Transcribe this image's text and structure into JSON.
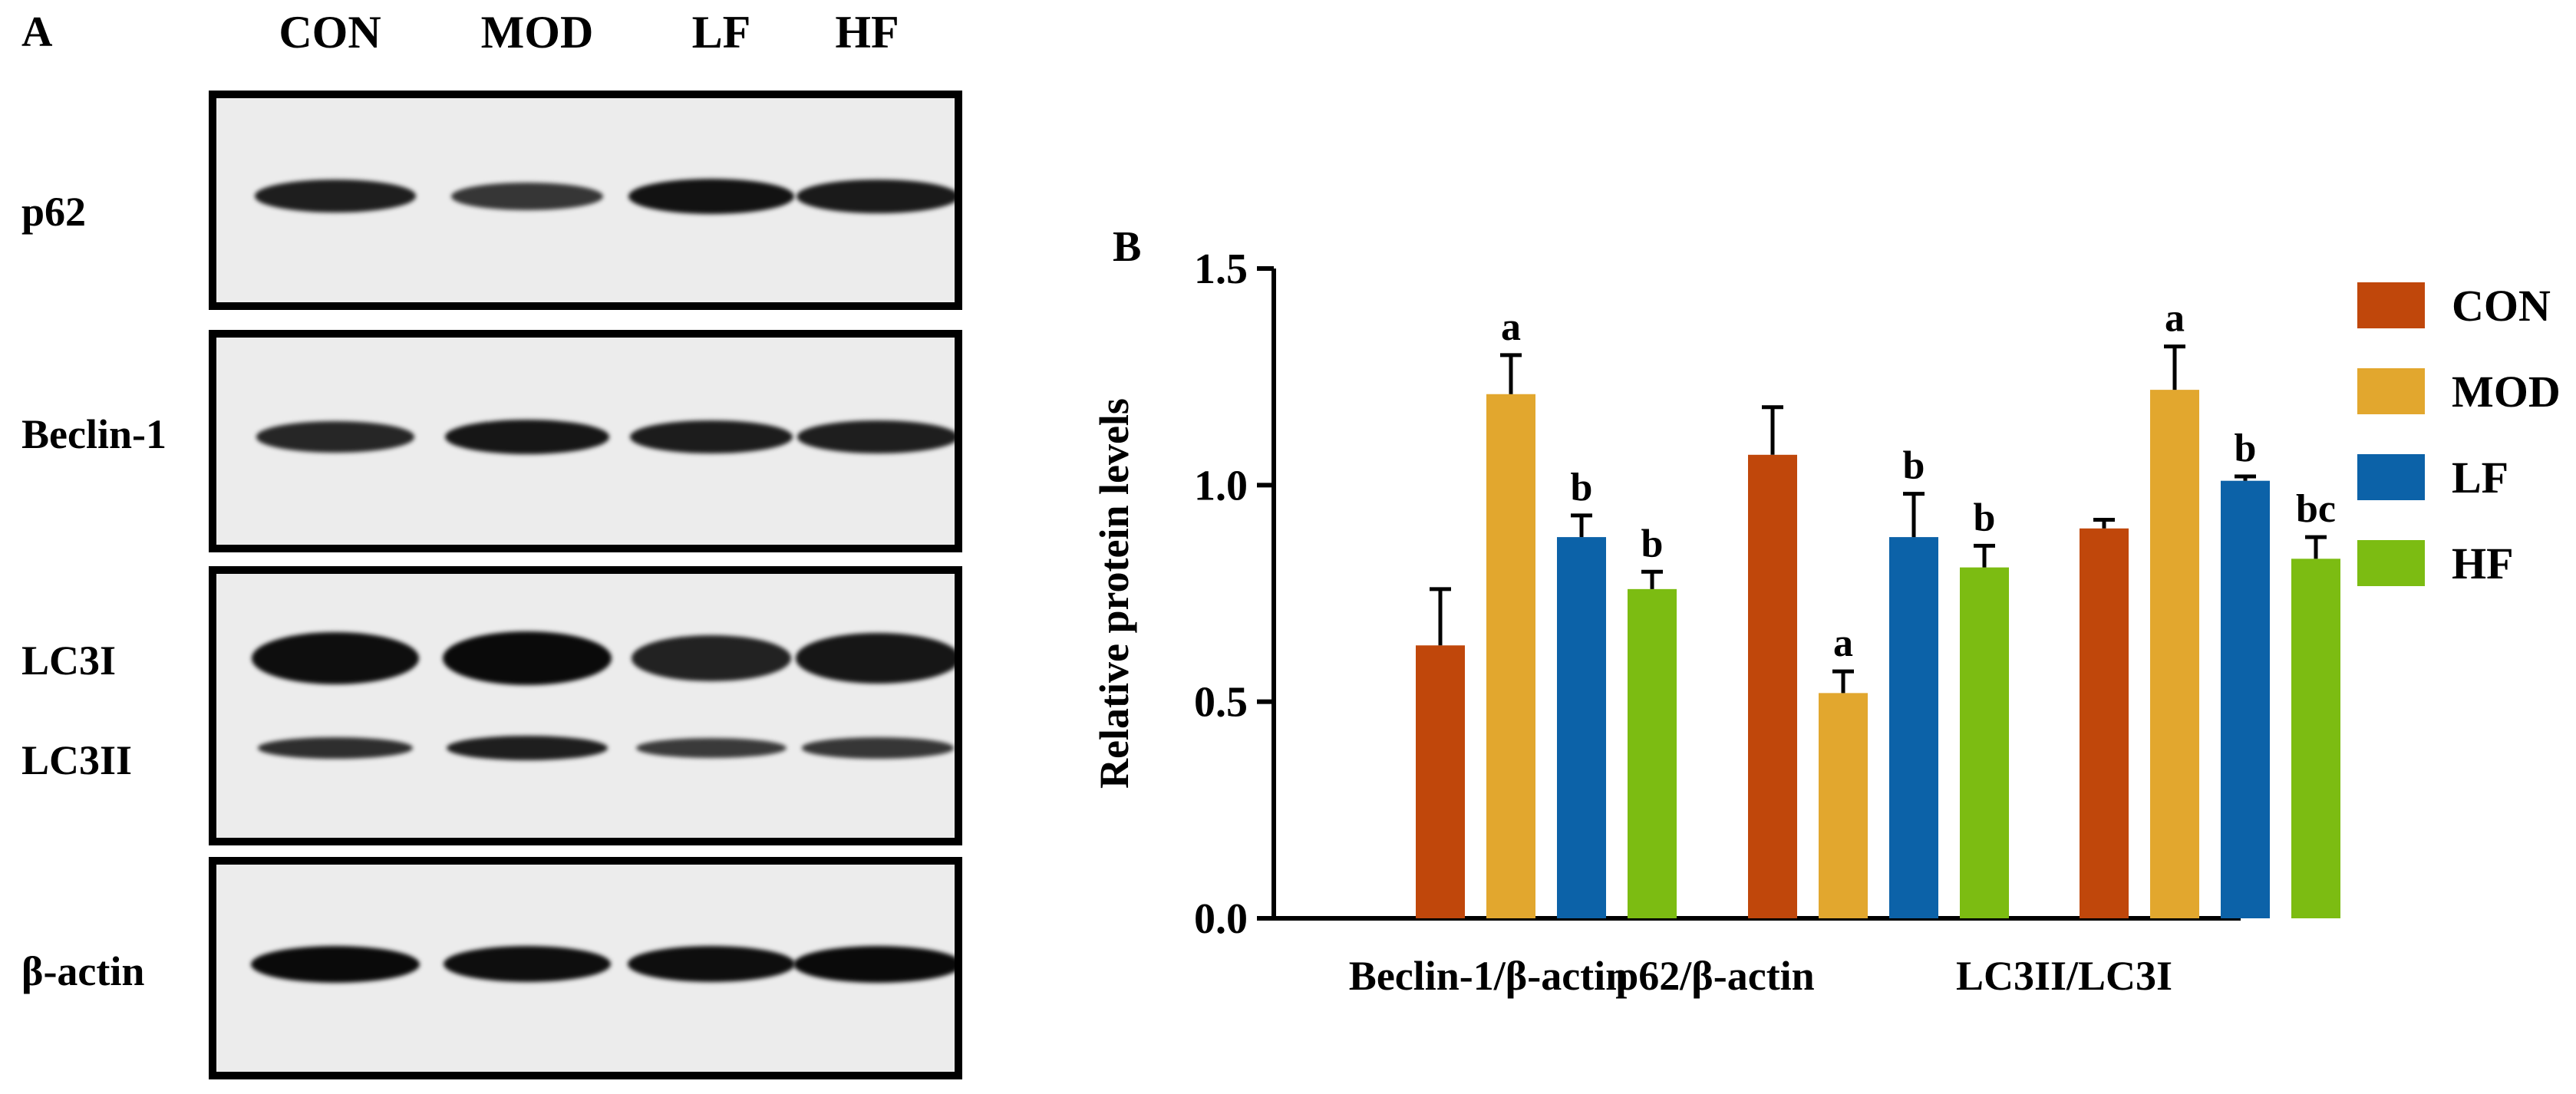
{
  "panel_a": {
    "letter": "A",
    "lanes": [
      "CON",
      "MOD",
      "LF",
      "HF"
    ],
    "blots": [
      {
        "labels": [
          "p62"
        ],
        "bands": [
          [
            0.75,
            0.45,
            0.9,
            0.8
          ]
        ]
      },
      {
        "labels": [
          "Beclin-1"
        ],
        "bands": [
          [
            0.65,
            0.85,
            0.78,
            0.75
          ]
        ]
      },
      {
        "labels": [
          "LC3I",
          "LC3II"
        ],
        "bands": [
          [
            0.95,
            1.0,
            0.7,
            0.85
          ],
          [
            0.55,
            0.75,
            0.4,
            0.45
          ]
        ]
      },
      {
        "labels": [
          "β-actin"
        ],
        "bands": [
          [
            1.0,
            0.95,
            0.95,
            1.0
          ]
        ]
      }
    ]
  },
  "panel_b": {
    "letter": "B"
  },
  "chart_data": {
    "type": "bar",
    "ylabel": "Relative protein levels",
    "ylim": [
      0,
      1.5
    ],
    "yticks": [
      "0.0",
      "0.5",
      "1.0",
      "1.5"
    ],
    "categories": [
      "Beclin-1/β-actin",
      "p62/β-actin",
      "LC3II/LC3I"
    ],
    "legend_position": "right",
    "series": [
      {
        "name": "CON",
        "color": "#c0470b",
        "values": [
          0.63,
          1.07,
          0.9
        ],
        "errors": [
          0.13,
          0.11,
          0.02
        ],
        "labels": [
          "",
          "",
          ""
        ]
      },
      {
        "name": "MOD",
        "color": "#e2a72e",
        "values": [
          1.21,
          0.52,
          1.22
        ],
        "errors": [
          0.09,
          0.05,
          0.1
        ],
        "labels": [
          "a",
          "a",
          "a"
        ]
      },
      {
        "name": "LF",
        "color": "#0c62a8",
        "values": [
          0.88,
          0.88,
          1.01
        ],
        "errors": [
          0.05,
          0.1,
          0.01
        ],
        "labels": [
          "b",
          "b",
          "b"
        ]
      },
      {
        "name": "HF",
        "color": "#7cbc12",
        "values": [
          0.76,
          0.81,
          0.83
        ],
        "errors": [
          0.04,
          0.05,
          0.05
        ],
        "labels": [
          "b",
          "b",
          "bc"
        ]
      }
    ]
  }
}
